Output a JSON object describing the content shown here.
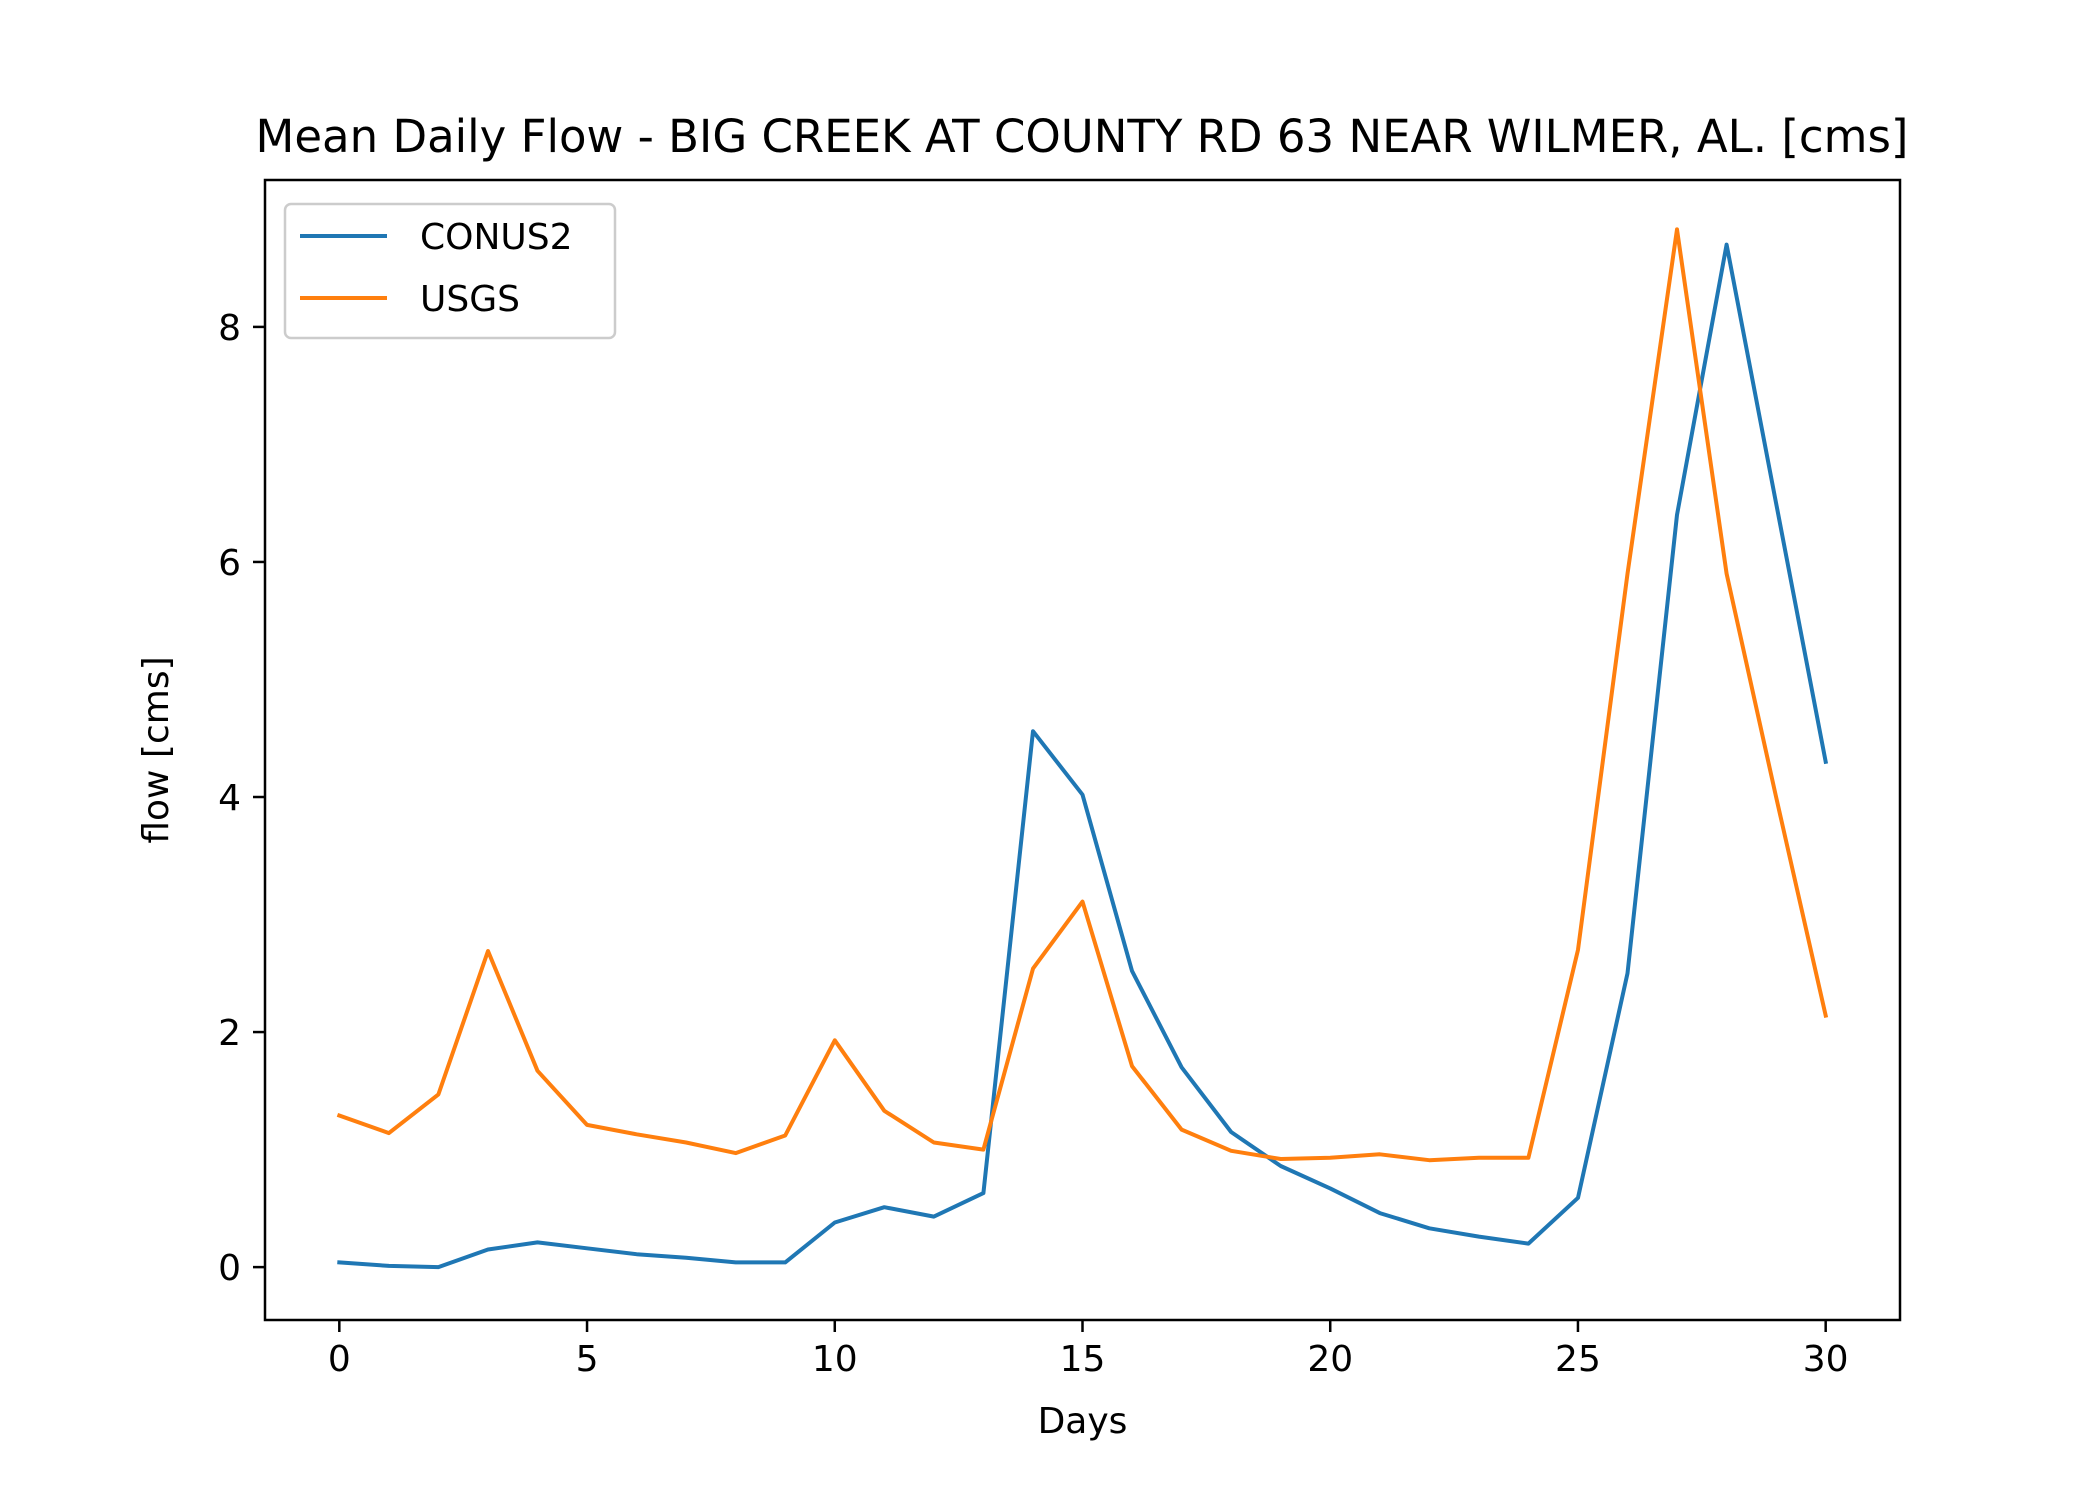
{
  "chart_data": {
    "type": "line",
    "title": "Mean Daily Flow - BIG CREEK AT COUNTY RD 63 NEAR WILMER, AL. [cms]",
    "xlabel": "Days",
    "ylabel": "flow [cms]",
    "xlim": [
      -1.5,
      31.5
    ],
    "ylim": [
      -0.45,
      9.25
    ],
    "xticks": [
      0,
      5,
      10,
      15,
      20,
      25,
      30
    ],
    "yticks": [
      0,
      2,
      4,
      6,
      8
    ],
    "grid": false,
    "legend_position": "upper-left",
    "x": [
      0,
      1,
      2,
      3,
      4,
      5,
      6,
      7,
      8,
      9,
      10,
      11,
      12,
      13,
      14,
      15,
      16,
      17,
      18,
      19,
      20,
      21,
      22,
      23,
      24,
      25,
      26,
      27,
      28,
      29,
      30
    ],
    "series": [
      {
        "name": "CONUS2",
        "color": "#1f77b4",
        "values": [
          0.04,
          0.01,
          0.0,
          0.15,
          0.21,
          0.16,
          0.11,
          0.08,
          0.04,
          0.04,
          0.38,
          0.51,
          0.43,
          0.63,
          4.56,
          4.02,
          2.52,
          1.7,
          1.15,
          0.86,
          0.67,
          0.46,
          0.33,
          0.26,
          0.2,
          0.59,
          2.5,
          6.4,
          8.7,
          6.5,
          4.3
        ]
      },
      {
        "name": "USGS",
        "color": "#ff7f0e",
        "values": [
          1.29,
          1.14,
          1.47,
          2.69,
          1.67,
          1.21,
          1.13,
          1.06,
          0.97,
          1.12,
          1.93,
          1.33,
          1.06,
          1.0,
          2.54,
          3.11,
          1.71,
          1.17,
          0.99,
          0.92,
          0.93,
          0.96,
          0.91,
          0.93,
          0.93,
          2.7,
          5.9,
          8.83,
          5.9,
          4.0,
          2.14
        ]
      }
    ]
  }
}
